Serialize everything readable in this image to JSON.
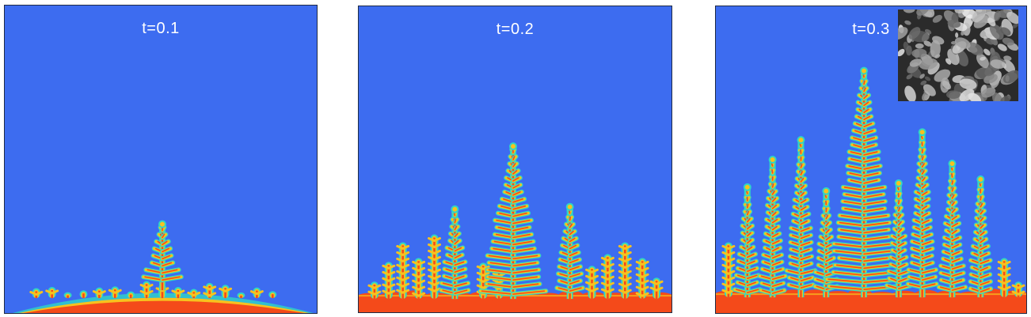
{
  "colors": {
    "background": "#3d6cf0",
    "front": "#f44a1a",
    "mid": "#f7c21e",
    "edge": "#2fd6c6",
    "frame": "#1d2a45"
  },
  "panels": [
    {
      "label": "t=0.1",
      "has_inset": false
    },
    {
      "label": "t=0.2",
      "has_inset": false
    },
    {
      "label": "t=0.3",
      "has_inset": true
    }
  ],
  "inset": {
    "description_icon": "sem-micrograph-image"
  }
}
